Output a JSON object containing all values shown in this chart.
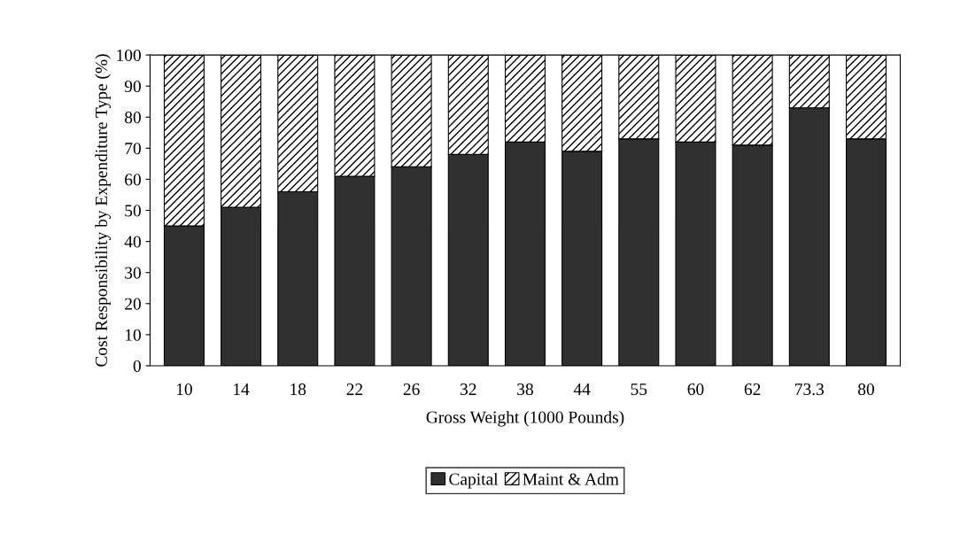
{
  "chart_data": {
    "type": "bar",
    "stacked": true,
    "xlabel": "Gross Weight (1000 Pounds)",
    "ylabel": "Cost Responsibility by Expenditure Type (%)",
    "categories": [
      "10",
      "14",
      "18",
      "22",
      "26",
      "32",
      "38",
      "44",
      "55",
      "60",
      "62",
      "73.3",
      "80"
    ],
    "series": [
      {
        "name": "Capital",
        "color": "#303030",
        "values": [
          45,
          51,
          56,
          61,
          64,
          68,
          72,
          69,
          73,
          72,
          71,
          83,
          73
        ]
      },
      {
        "name": "Maint & Adm",
        "color": "#000000",
        "values": [
          55,
          49,
          44,
          39,
          36,
          32,
          28,
          31,
          27,
          28,
          29,
          17,
          27
        ]
      }
    ],
    "ylim": [
      0,
      100
    ],
    "yticks": [
      0,
      10,
      20,
      30,
      40,
      50,
      60,
      70,
      80,
      90,
      100
    ],
    "grid": false,
    "legend": "bottom"
  }
}
